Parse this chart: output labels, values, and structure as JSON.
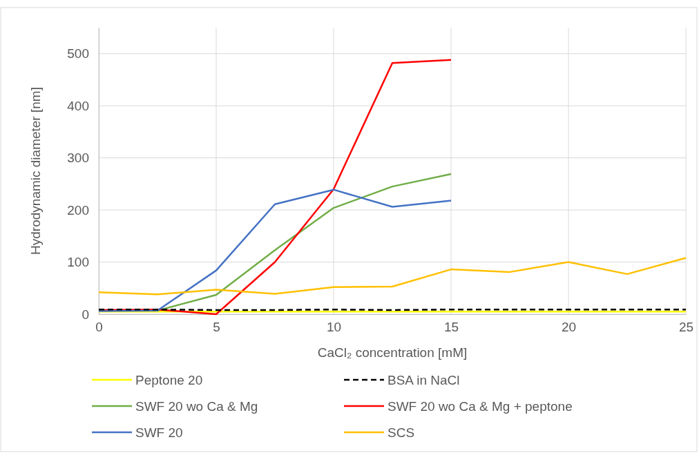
{
  "chart_data": {
    "type": "line",
    "xlabel": "CaCl₂ concentration [mM]",
    "ylabel": "Hydrodynamic diameter [nm]",
    "xlim": [
      0,
      25
    ],
    "xticks": [
      0,
      5,
      10,
      15,
      20,
      25
    ],
    "ylim": [
      0,
      550
    ],
    "yticks": [
      0,
      100,
      200,
      300,
      400,
      500
    ],
    "grid": true,
    "legend": "bottom",
    "marker": "none",
    "line_style": "solid",
    "series": [
      {
        "name": "Peptone 20",
        "color": "#ffff00",
        "x": [
          0,
          2.5,
          5,
          7.5,
          10,
          12.5,
          15,
          17.5,
          20,
          22.5,
          25
        ],
        "values": [
          5,
          5,
          5,
          5,
          5,
          5,
          5,
          5,
          5,
          5,
          5
        ]
      },
      {
        "name": "BSA in NaCl",
        "color": "#000000",
        "line_style": "dashed",
        "x": [
          0,
          2.5,
          5,
          7.5,
          10,
          12.5,
          15,
          17.5,
          20,
          22.5,
          25
        ],
        "values": [
          9,
          9,
          8,
          8,
          9,
          8,
          9,
          9,
          9,
          9,
          9
        ]
      },
      {
        "name": "SWF 20 wo Ca & Mg",
        "color": "#70ad47",
        "x": [
          0,
          2.5,
          5,
          7.5,
          10,
          12.5,
          15
        ],
        "values": [
          7,
          7,
          37,
          123,
          204,
          245,
          269
        ]
      },
      {
        "name": "SWF 20 wo Ca & Mg + peptone",
        "color": "#ff0000",
        "x": [
          0,
          2.5,
          5,
          7.5,
          10,
          12.5,
          15
        ],
        "values": [
          8,
          9,
          0,
          100,
          240,
          482,
          488
        ]
      },
      {
        "name": "SWF 20",
        "color": "#4472c4",
        "x": [
          0,
          2.5,
          5,
          7.5,
          10,
          12.5,
          15
        ],
        "values": [
          6,
          7,
          84,
          211,
          239,
          206,
          218
        ]
      },
      {
        "name": "SCS",
        "color": "#ffc000",
        "x": [
          0,
          2.5,
          5,
          7.5,
          10,
          12.5,
          15,
          17.5,
          20,
          22.5,
          25
        ],
        "values": [
          42,
          38,
          47,
          39,
          52,
          53,
          86,
          81,
          100,
          77,
          108
        ]
      }
    ]
  }
}
